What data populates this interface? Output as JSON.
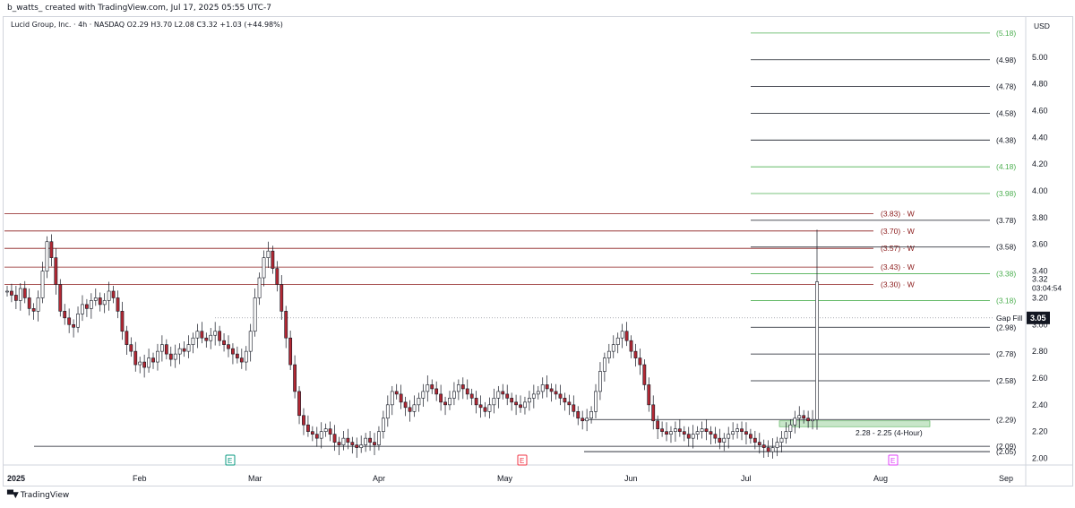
{
  "header": {
    "created_by": "b_watts_ created with TradingView.com, Jul 17, 2025 05:55 UTC-7"
  },
  "symbol_info": "Lucid Group, Inc. · 4h · NASDAQ  O2.29  H3.70  L2.08  C3.32  +1.03 (+44.98%)",
  "footer": {
    "logo_icon": "tradingview-logo-icon",
    "brand": "TradingView"
  },
  "colors": {
    "up_candle": "#ffffff",
    "down_candle": "#b22833",
    "candle_outline": "#131722",
    "weekly_line": "#8b1a1a",
    "green_level": "#4caf50",
    "black_level": "#131722",
    "zone_fill": "#c8e6c9"
  },
  "chart_data": {
    "type": "candlestick",
    "currency": "USD",
    "y_ticks": [
      "5.00",
      "4.80",
      "4.60",
      "4.40",
      "4.20",
      "4.00",
      "3.80",
      "3.60",
      "3.40",
      "3.20",
      "3.00",
      "2.80",
      "2.60",
      "2.40",
      "2.20",
      "2.00"
    ],
    "ylim": [
      1.95,
      5.3
    ],
    "x_ticks": [
      "2025",
      "Feb",
      "Mar",
      "Apr",
      "May",
      "Jun",
      "Jul",
      "Aug",
      "Sep"
    ],
    "current_price": "3.32",
    "countdown": "03:04:54",
    "gap_fill": {
      "label": "Gap Fill",
      "value": "3.05"
    },
    "weekly_levels": [
      {
        "label": "(3.83) · W",
        "value": 3.83
      },
      {
        "label": "(3.70) · W",
        "value": 3.7
      },
      {
        "label": "(3.57) · W",
        "value": 3.57
      },
      {
        "label": "(3.43) · W",
        "value": 3.43
      },
      {
        "label": "(3.30) · W",
        "value": 3.3
      }
    ],
    "projection_levels": [
      {
        "label": "(5.18)",
        "value": 5.18,
        "color": "green"
      },
      {
        "label": "(4.98)",
        "value": 4.98,
        "color": "black"
      },
      {
        "label": "(4.78)",
        "value": 4.78,
        "color": "black"
      },
      {
        "label": "(4.58)",
        "value": 4.58,
        "color": "black"
      },
      {
        "label": "(4.38)",
        "value": 4.38,
        "color": "black"
      },
      {
        "label": "(4.18)",
        "value": 4.18,
        "color": "green"
      },
      {
        "label": "(3.98)",
        "value": 3.98,
        "color": "green"
      },
      {
        "label": "(3.78)",
        "value": 3.78,
        "color": "black"
      },
      {
        "label": "(3.58)",
        "value": 3.58,
        "color": "black"
      },
      {
        "label": "(3.38)",
        "value": 3.38,
        "color": "green"
      },
      {
        "label": "(3.18)",
        "value": 3.18,
        "color": "green"
      },
      {
        "label": "(2.98)",
        "value": 2.98,
        "color": "black"
      },
      {
        "label": "(2.78)",
        "value": 2.78,
        "color": "black"
      },
      {
        "label": "(2.58)",
        "value": 2.58,
        "color": "black"
      },
      {
        "label": "(2.29)",
        "value": 2.29,
        "color": "black"
      },
      {
        "label": "(2.09)",
        "value": 2.09,
        "color": "black"
      },
      {
        "label": "(2.05)",
        "value": 2.05,
        "color": "black"
      }
    ],
    "support_zone": {
      "label": "2.28 - 2.25 (4-Hour)",
      "top": 2.28,
      "bottom": 2.25
    },
    "earnings_markers": [
      {
        "label": "E",
        "month": "Feb",
        "color": "#089981"
      },
      {
        "label": "E",
        "month": "May",
        "color": "#f23645"
      },
      {
        "label": "E",
        "month": "Aug",
        "color": "#e040fb"
      }
    ],
    "candles_close": [
      3.25,
      3.22,
      3.18,
      3.27,
      3.2,
      3.12,
      3.1,
      3.2,
      3.4,
      3.62,
      3.5,
      3.3,
      3.1,
      3.05,
      3.0,
      2.98,
      3.08,
      3.15,
      3.12,
      3.18,
      3.2,
      3.15,
      3.18,
      3.25,
      3.2,
      3.1,
      2.95,
      2.85,
      2.8,
      2.7,
      2.72,
      2.68,
      2.75,
      2.72,
      2.8,
      2.85,
      2.78,
      2.74,
      2.78,
      2.82,
      2.8,
      2.85,
      2.9,
      2.95,
      2.9,
      2.88,
      2.92,
      2.95,
      2.88,
      2.85,
      2.82,
      2.78,
      2.75,
      2.72,
      2.8,
      2.95,
      3.2,
      3.35,
      3.5,
      3.55,
      3.42,
      3.3,
      3.1,
      2.9,
      2.7,
      2.5,
      2.32,
      2.25,
      2.2,
      2.18,
      2.15,
      2.2,
      2.22,
      2.18,
      2.12,
      2.1,
      2.15,
      2.12,
      2.1,
      2.08,
      2.1,
      2.15,
      2.12,
      2.1,
      2.2,
      2.3,
      2.4,
      2.5,
      2.48,
      2.42,
      2.38,
      2.35,
      2.4,
      2.45,
      2.5,
      2.55,
      2.52,
      2.48,
      2.42,
      2.4,
      2.45,
      2.5,
      2.55,
      2.52,
      2.48,
      2.45,
      2.4,
      2.38,
      2.35,
      2.4,
      2.45,
      2.5,
      2.48,
      2.45,
      2.42,
      2.4,
      2.38,
      2.42,
      2.45,
      2.48,
      2.5,
      2.55,
      2.52,
      2.5,
      2.48,
      2.45,
      2.42,
      2.4,
      2.35,
      2.3,
      2.28,
      2.3,
      2.35,
      2.5,
      2.65,
      2.75,
      2.8,
      2.85,
      2.9,
      2.95,
      2.88,
      2.8,
      2.75,
      2.7,
      2.55,
      2.4,
      2.28,
      2.22,
      2.2,
      2.18,
      2.2,
      2.22,
      2.2,
      2.18,
      2.15,
      2.18,
      2.2,
      2.22,
      2.2,
      2.18,
      2.15,
      2.12,
      2.15,
      2.18,
      2.2,
      2.22,
      2.2,
      2.18,
      2.15,
      2.12,
      2.1,
      2.08,
      2.05,
      2.08,
      2.12,
      2.15,
      2.2,
      2.25,
      2.3,
      2.32,
      2.3,
      2.28,
      2.29,
      3.32
    ]
  }
}
